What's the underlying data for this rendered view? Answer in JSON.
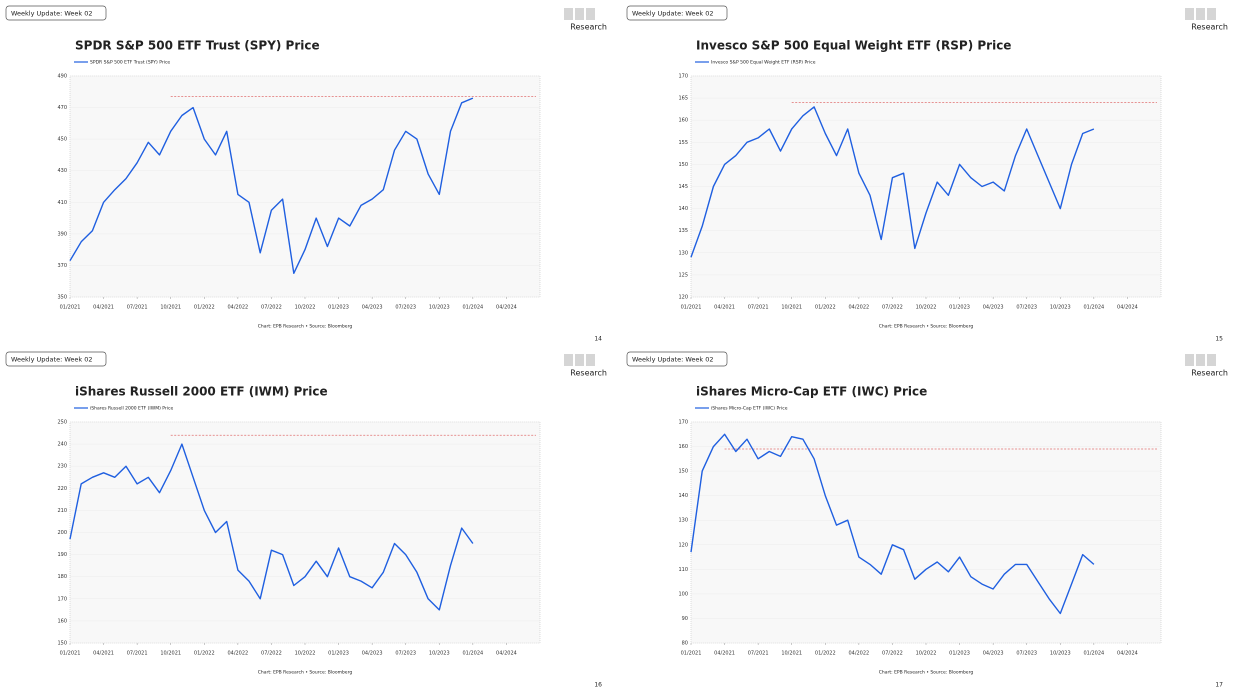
{
  "slides": [
    {
      "tag": "Weekly Update: Week 02",
      "brand": "Research",
      "source": "Chart: EPB Research • Source: Bloomberg",
      "page": "14"
    },
    {
      "tag": "Weekly Update: Week 02",
      "brand": "Research",
      "source": "Chart: EPB Research • Source: Bloomberg",
      "page": "15"
    },
    {
      "tag": "Weekly Update: Week 02",
      "brand": "Research",
      "source": "Chart: EPB Research • Source: Bloomberg",
      "page": "16"
    },
    {
      "tag": "Weekly Update: Week 02",
      "brand": "Research",
      "source": "Chart: EPB Research • Source: Bloomberg",
      "page": "17"
    }
  ],
  "chart_data": [
    {
      "type": "line",
      "title": "SPDR S&P 500 ETF Trust (SPY) Price",
      "x": [
        "01/2021",
        "02/2021",
        "03/2021",
        "04/2021",
        "05/2021",
        "06/2021",
        "07/2021",
        "08/2021",
        "09/2021",
        "10/2021",
        "11/2021",
        "12/2021",
        "01/2022",
        "02/2022",
        "03/2022",
        "04/2022",
        "05/2022",
        "06/2022",
        "07/2022",
        "08/2022",
        "09/2022",
        "10/2022",
        "11/2022",
        "12/2022",
        "01/2023",
        "02/2023",
        "03/2023",
        "04/2023",
        "05/2023",
        "06/2023",
        "07/2023",
        "08/2023",
        "09/2023",
        "10/2023",
        "11/2023",
        "12/2023",
        "01/2024"
      ],
      "series": [
        {
          "name": "SPDR S&P 500 ETF Trust (SPY) Price",
          "color": "#1f5fe0",
          "values": [
            373,
            385,
            392,
            410,
            418,
            425,
            435,
            448,
            440,
            455,
            465,
            470,
            450,
            440,
            455,
            415,
            410,
            378,
            405,
            412,
            365,
            380,
            400,
            382,
            400,
            395,
            408,
            412,
            418,
            443,
            455,
            450,
            428,
            415,
            455,
            473,
            476
          ]
        }
      ],
      "hline": {
        "value": 477,
        "from": "10/2021",
        "color": "#e07070"
      },
      "xlim": [
        "01/2021",
        "07/2024"
      ],
      "xticks": [
        "01/2021",
        "04/2021",
        "07/2021",
        "10/2021",
        "01/2022",
        "04/2022",
        "07/2022",
        "10/2022",
        "01/2023",
        "04/2023",
        "07/2023",
        "10/2023",
        "01/2024",
        "04/2024"
      ],
      "ylim": [
        350,
        490
      ],
      "yticks": [
        350,
        370,
        390,
        410,
        430,
        450,
        470,
        490
      ],
      "grid": true
    },
    {
      "type": "line",
      "title": "Invesco S&P 500 Equal Weight ETF (RSP) Price",
      "x": [
        "01/2021",
        "02/2021",
        "03/2021",
        "04/2021",
        "05/2021",
        "06/2021",
        "07/2021",
        "08/2021",
        "09/2021",
        "10/2021",
        "11/2021",
        "12/2021",
        "01/2022",
        "02/2022",
        "03/2022",
        "04/2022",
        "05/2022",
        "06/2022",
        "07/2022",
        "08/2022",
        "09/2022",
        "10/2022",
        "11/2022",
        "12/2022",
        "01/2023",
        "02/2023",
        "03/2023",
        "04/2023",
        "05/2023",
        "06/2023",
        "07/2023",
        "08/2023",
        "09/2023",
        "10/2023",
        "11/2023",
        "12/2023",
        "01/2024"
      ],
      "series": [
        {
          "name": "Invesco S&P 500 Equal Weight ETF (RSP) Price",
          "color": "#1f5fe0",
          "values": [
            129,
            136,
            145,
            150,
            152,
            155,
            156,
            158,
            153,
            158,
            161,
            163,
            157,
            152,
            158,
            148,
            143,
            133,
            147,
            148,
            131,
            139,
            146,
            143,
            150,
            147,
            145,
            146,
            144,
            152,
            158,
            152,
            146,
            140,
            150,
            157,
            158
          ]
        }
      ],
      "hline": {
        "value": 164,
        "from": "10/2021",
        "color": "#e07070"
      },
      "xlim": [
        "01/2021",
        "07/2024"
      ],
      "xticks": [
        "01/2021",
        "04/2021",
        "07/2021",
        "10/2021",
        "01/2022",
        "04/2022",
        "07/2022",
        "10/2022",
        "01/2023",
        "04/2023",
        "07/2023",
        "10/2023",
        "01/2024",
        "04/2024"
      ],
      "ylim": [
        120,
        170
      ],
      "yticks": [
        120,
        125,
        130,
        135,
        140,
        145,
        150,
        155,
        160,
        165,
        170
      ],
      "grid": true
    },
    {
      "type": "line",
      "title": "iShares Russell 2000 ETF (IWM) Price",
      "x": [
        "01/2021",
        "02/2021",
        "03/2021",
        "04/2021",
        "05/2021",
        "06/2021",
        "07/2021",
        "08/2021",
        "09/2021",
        "10/2021",
        "11/2021",
        "12/2021",
        "01/2022",
        "02/2022",
        "03/2022",
        "04/2022",
        "05/2022",
        "06/2022",
        "07/2022",
        "08/2022",
        "09/2022",
        "10/2022",
        "11/2022",
        "12/2022",
        "01/2023",
        "02/2023",
        "03/2023",
        "04/2023",
        "05/2023",
        "06/2023",
        "07/2023",
        "08/2023",
        "09/2023",
        "10/2023",
        "11/2023",
        "12/2023",
        "01/2024"
      ],
      "series": [
        {
          "name": "iShares Russell 2000 ETF (IWM) Price",
          "color": "#1f5fe0",
          "values": [
            197,
            222,
            225,
            227,
            225,
            230,
            222,
            225,
            218,
            228,
            240,
            225,
            210,
            200,
            205,
            183,
            178,
            170,
            192,
            190,
            176,
            180,
            187,
            180,
            193,
            180,
            178,
            175,
            182,
            195,
            190,
            182,
            170,
            165,
            185,
            202,
            195
          ]
        }
      ],
      "hline": {
        "value": 244,
        "from": "10/2021",
        "color": "#e07070"
      },
      "xlim": [
        "01/2021",
        "07/2024"
      ],
      "xticks": [
        "01/2021",
        "04/2021",
        "07/2021",
        "10/2021",
        "01/2022",
        "04/2022",
        "07/2022",
        "10/2022",
        "01/2023",
        "04/2023",
        "07/2023",
        "10/2023",
        "01/2024",
        "04/2024"
      ],
      "ylim": [
        150,
        250
      ],
      "yticks": [
        150,
        160,
        170,
        180,
        190,
        200,
        210,
        220,
        230,
        240,
        250
      ],
      "grid": true
    },
    {
      "type": "line",
      "title": "iShares Micro-Cap ETF (IWC) Price",
      "x": [
        "01/2021",
        "02/2021",
        "03/2021",
        "04/2021",
        "05/2021",
        "06/2021",
        "07/2021",
        "08/2021",
        "09/2021",
        "10/2021",
        "11/2021",
        "12/2021",
        "01/2022",
        "02/2022",
        "03/2022",
        "04/2022",
        "05/2022",
        "06/2022",
        "07/2022",
        "08/2022",
        "09/2022",
        "10/2022",
        "11/2022",
        "12/2022",
        "01/2023",
        "02/2023",
        "03/2023",
        "04/2023",
        "05/2023",
        "06/2023",
        "07/2023",
        "08/2023",
        "09/2023",
        "10/2023",
        "11/2023",
        "12/2023",
        "01/2024"
      ],
      "series": [
        {
          "name": "iShares Micro-Cap ETF (IWC) Price",
          "color": "#1f5fe0",
          "values": [
            117,
            150,
            160,
            165,
            158,
            163,
            155,
            158,
            156,
            164,
            163,
            155,
            140,
            128,
            130,
            115,
            112,
            108,
            120,
            118,
            106,
            110,
            113,
            109,
            115,
            107,
            104,
            102,
            108,
            112,
            112,
            105,
            98,
            92,
            104,
            116,
            112
          ]
        }
      ],
      "hline": {
        "value": 159,
        "from": "04/2021",
        "color": "#e07070"
      },
      "xlim": [
        "01/2021",
        "07/2024"
      ],
      "xticks": [
        "01/2021",
        "04/2021",
        "07/2021",
        "10/2021",
        "01/2022",
        "04/2022",
        "07/2022",
        "10/2022",
        "01/2023",
        "04/2023",
        "07/2023",
        "10/2023",
        "01/2024",
        "04/2024"
      ],
      "ylim": [
        80,
        170
      ],
      "yticks": [
        80,
        90,
        100,
        110,
        120,
        130,
        140,
        150,
        160,
        170
      ],
      "grid": true
    }
  ]
}
